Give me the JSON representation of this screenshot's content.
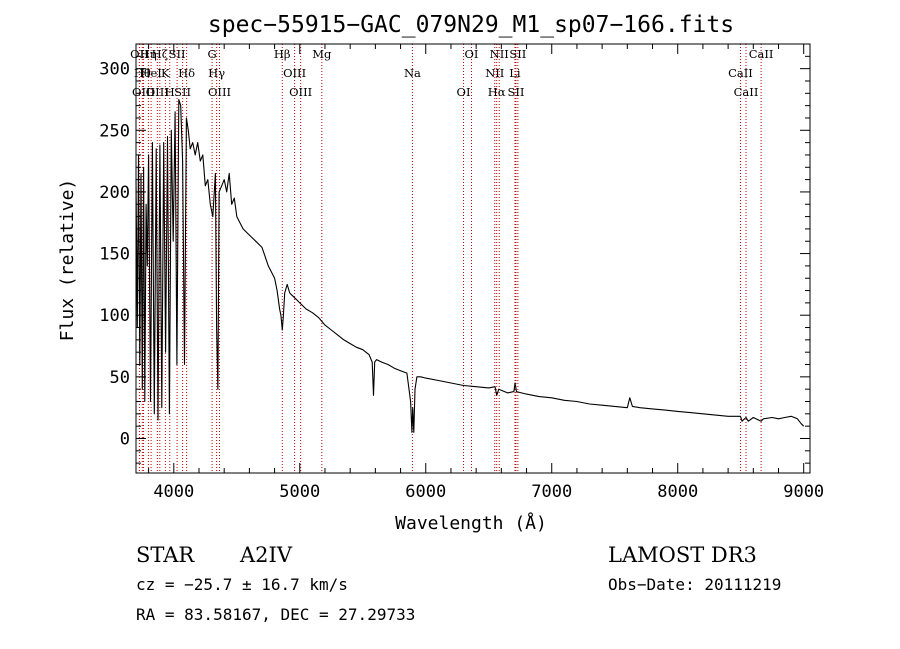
{
  "chart_data": {
    "type": "line",
    "title": "spec−55915−GAC_079N29_M1_sp07−166.fits",
    "xlabel": "Wavelength (Å)",
    "ylabel": "Flux (relative)",
    "xlim": [
      3700,
      9050
    ],
    "ylim": [
      -28,
      320
    ],
    "xticks": [
      4000,
      5000,
      6000,
      7000,
      8000,
      9000
    ],
    "yticks": [
      0,
      50,
      100,
      150,
      200,
      250,
      300
    ],
    "grid": false,
    "series": [
      {
        "name": "spectrum",
        "x": [
          3700,
          3710,
          3720,
          3730,
          3740,
          3750,
          3760,
          3770,
          3780,
          3790,
          3800,
          3815,
          3830,
          3845,
          3860,
          3875,
          3890,
          3905,
          3920,
          3935,
          3950,
          3965,
          3980,
          3995,
          4010,
          4025,
          4040,
          4055,
          4070,
          4085,
          4100,
          4115,
          4130,
          4150,
          4170,
          4190,
          4210,
          4230,
          4250,
          4270,
          4290,
          4310,
          4330,
          4340,
          4350,
          4360,
          4380,
          4400,
          4420,
          4440,
          4460,
          4480,
          4500,
          4550,
          4600,
          4650,
          4700,
          4750,
          4800,
          4820,
          4840,
          4850,
          4861,
          4870,
          4880,
          4900,
          4920,
          4950,
          5000,
          5050,
          5100,
          5150,
          5200,
          5250,
          5300,
          5350,
          5400,
          5450,
          5500,
          5550,
          5575,
          5585,
          5595,
          5610,
          5650,
          5700,
          5750,
          5800,
          5850,
          5880,
          5890,
          5896,
          5905,
          5915,
          5930,
          5960,
          6000,
          6100,
          6200,
          6300,
          6400,
          6500,
          6550,
          6563,
          6580,
          6650,
          6700,
          6708,
          6720,
          6800,
          6900,
          7000,
          7100,
          7200,
          7300,
          7400,
          7500,
          7600,
          7620,
          7640,
          7700,
          7800,
          7900,
          8000,
          8100,
          8200,
          8300,
          8400,
          8498,
          8510,
          8542,
          8560,
          8600,
          8662,
          8680,
          8750,
          8800,
          8850,
          8900,
          8950,
          8980,
          9000
        ],
        "values": [
          210,
          90,
          230,
          60,
          215,
          40,
          220,
          30,
          190,
          140,
          230,
          30,
          240,
          20,
          235,
          15,
          238,
          25,
          240,
          70,
          245,
          20,
          250,
          160,
          265,
          60,
          275,
          270,
          225,
          60,
          260,
          250,
          235,
          240,
          230,
          240,
          225,
          230,
          205,
          210,
          190,
          180,
          215,
          90,
          40,
          200,
          205,
          210,
          200,
          215,
          190,
          195,
          180,
          170,
          165,
          160,
          155,
          140,
          130,
          120,
          105,
          100,
          88,
          100,
          118,
          125,
          118,
          115,
          110,
          105,
          102,
          98,
          92,
          88,
          84,
          80,
          77,
          74,
          72,
          68,
          62,
          35,
          62,
          64,
          62,
          60,
          57,
          55,
          53,
          30,
          5,
          25,
          5,
          40,
          50,
          50,
          49,
          47,
          45,
          43,
          42,
          41,
          42,
          35,
          40,
          37,
          38,
          45,
          38,
          36,
          34,
          33,
          31,
          30,
          28,
          27,
          26,
          25,
          33,
          26,
          25,
          24,
          23,
          22,
          21,
          20,
          19,
          18,
          18,
          14,
          17,
          14,
          17,
          14,
          16,
          17,
          16,
          17,
          18,
          16,
          12,
          10
        ]
      }
    ],
    "line_labels": [
      {
        "wl": 3727,
        "text": "OII"
      },
      {
        "wl": 3750,
        "text": "Hθ"
      },
      {
        "wl": 3760,
        "text": "OIII"
      },
      {
        "wl": 3798,
        "text": "Hη"
      },
      {
        "wl": 3820,
        "text": "HeI"
      },
      {
        "wl": 3869,
        "text": "OIII"
      },
      {
        "wl": 3889,
        "text": "Hζ"
      },
      {
        "wl": 3933,
        "text": "K"
      },
      {
        "wl": 3968,
        "text": "H"
      },
      {
        "wl": 4026,
        "text": "SII"
      },
      {
        "wl": 4102,
        "text": "Hδ"
      },
      {
        "wl": 4070,
        "text": "SII"
      },
      {
        "wl": 4304,
        "text": "G"
      },
      {
        "wl": 4340,
        "text": "Hγ"
      },
      {
        "wl": 4363,
        "text": "OIII"
      },
      {
        "wl": 4861,
        "text": "Hβ"
      },
      {
        "wl": 4959,
        "text": "OIII"
      },
      {
        "wl": 5007,
        "text": "OIII"
      },
      {
        "wl": 5175,
        "text": "Mg"
      },
      {
        "wl": 5894,
        "text": "Na"
      },
      {
        "wl": 6300,
        "text": "OI"
      },
      {
        "wl": 6363,
        "text": "OI"
      },
      {
        "wl": 6548,
        "text": "NII"
      },
      {
        "wl": 6563,
        "text": "Hα"
      },
      {
        "wl": 6583,
        "text": "NII"
      },
      {
        "wl": 6708,
        "text": "Li"
      },
      {
        "wl": 6716,
        "text": "SII"
      },
      {
        "wl": 6731,
        "text": "SII"
      },
      {
        "wl": 8498,
        "text": "CaII"
      },
      {
        "wl": 8542,
        "text": "CaII"
      },
      {
        "wl": 8662,
        "text": "CaII"
      }
    ]
  },
  "footer": {
    "object_type": "STAR",
    "subclass": "A2IV",
    "survey": "LAMOST DR3",
    "cz": "cz = −25.7 ± 16.7 km/s",
    "obs_date": "Obs−Date: 20111219",
    "coords": "RA =  83.58167, DEC =  27.29733"
  }
}
